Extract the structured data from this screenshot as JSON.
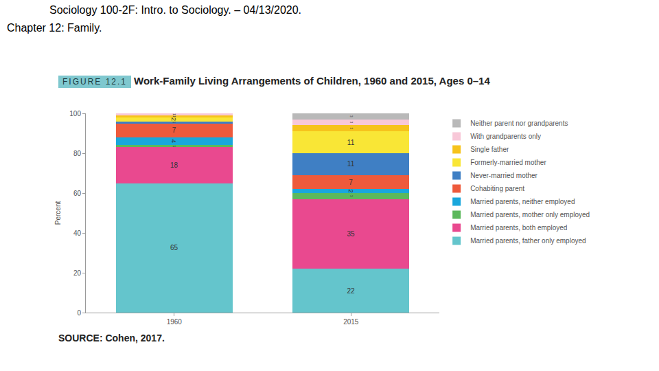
{
  "header": {
    "course": "Sociology 100-2F: Intro. to Sociology. – 04/13/2020.",
    "chapter": "Chapter 12: Family."
  },
  "chart_data": {
    "type": "bar",
    "stacked": true,
    "figure_label": "FIGURE 12.1",
    "title": "Work-Family Living Arrangements of Children, 1960 and 2015, Ages 0–14",
    "y_label": "Percent",
    "source": "SOURCE: Cohen, 2017.",
    "categories": [
      "1960",
      "2015"
    ],
    "ylim": [
      0,
      100
    ],
    "yticks": [
      0,
      20,
      40,
      60,
      80,
      100
    ],
    "grid": false,
    "legend": "right",
    "data_labels": true,
    "series": [
      {
        "name": "Married parents, father only employed",
        "color": "#64c5cc",
        "values": [
          65,
          22
        ]
      },
      {
        "name": "Married parents, both employed",
        "color": "#e9498f",
        "values": [
          18,
          35
        ]
      },
      {
        "name": "Married parents, mother only employed",
        "color": "#5cb85c",
        "values": [
          1,
          3
        ]
      },
      {
        "name": "Married parents, neither employed",
        "color": "#1aa7dc",
        "values": [
          4,
          2
        ]
      },
      {
        "name": "Cohabiting parent",
        "color": "#ee5a3c",
        "values": [
          7,
          7
        ]
      },
      {
        "name": "Never-married mother",
        "color": "#3f7fc4",
        "values": [
          1,
          11
        ]
      },
      {
        "name": "Formerly-married mother",
        "color": "#f9e636",
        "values": [
          2,
          11
        ]
      },
      {
        "name": "Single father",
        "color": "#f6c31c",
        "values": [
          1,
          3
        ]
      },
      {
        "name": "With grandparents only",
        "color": "#f8c8d8",
        "values": [
          1,
          3
        ]
      },
      {
        "name": "Neither parent nor grandparents",
        "color": "#b9b9b9",
        "values": [
          0,
          3
        ]
      }
    ]
  }
}
